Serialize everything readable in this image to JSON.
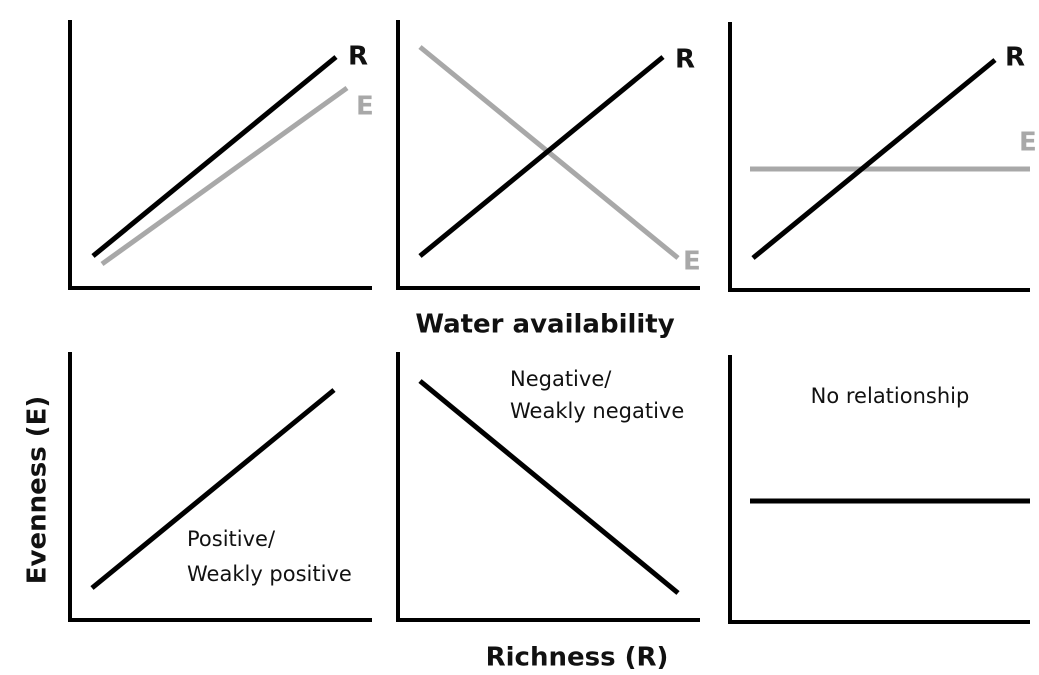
{
  "top_panels": [
    {
      "r_label": "R",
      "e_label": "E"
    },
    {
      "r_label": "R",
      "e_label": "E"
    },
    {
      "r_label": "R",
      "e_label": "E"
    }
  ],
  "top_axis_label": "Water availability",
  "bottom_panels": [
    {
      "label_lines": [
        "Positive/",
        "Weakly positive"
      ]
    },
    {
      "label_lines": [
        "Negative/",
        "Weakly negative"
      ]
    },
    {
      "label_lines": [
        "No relationship"
      ]
    }
  ],
  "y_axis_label": "Evenness (E)",
  "x_axis_label": "Richness (R)"
}
